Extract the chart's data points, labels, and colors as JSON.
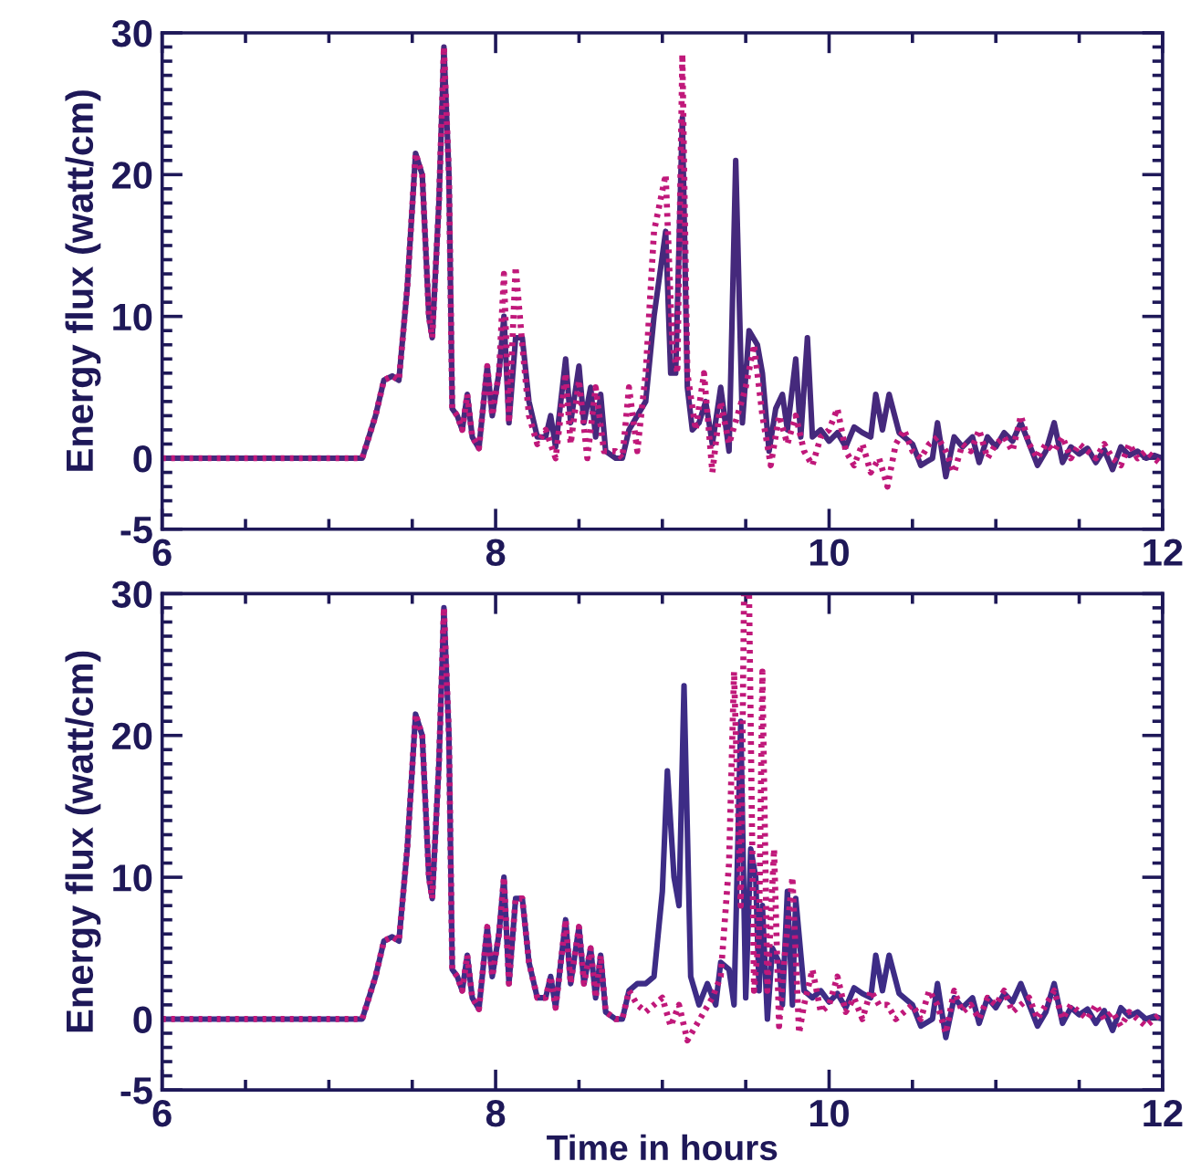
{
  "chart_data": [
    {
      "type": "line",
      "ylabel": "Energy flux (watt/cm)",
      "xlim": [
        6,
        12
      ],
      "xticks": [
        6,
        8,
        10,
        12
      ],
      "ylim": [
        -5,
        30
      ],
      "yticks": [
        -5,
        0,
        10,
        20,
        30
      ],
      "grid": false,
      "series": [
        {
          "color": "#45297c",
          "line_style": "solid",
          "x": [
            6.0,
            7.2,
            7.28,
            7.33,
            7.38,
            7.42,
            7.47,
            7.52,
            7.56,
            7.6,
            7.62,
            7.66,
            7.69,
            7.72,
            7.74,
            7.77,
            7.8,
            7.83,
            7.86,
            7.9,
            7.95,
            7.98,
            8.02,
            8.05,
            8.08,
            8.12,
            8.16,
            8.2,
            8.25,
            8.3,
            8.33,
            8.36,
            8.42,
            8.45,
            8.5,
            8.53,
            8.57,
            8.6,
            8.63,
            8.66,
            8.72,
            8.76,
            8.8,
            8.85,
            8.9,
            8.95,
            9.02,
            9.05,
            9.08,
            9.12,
            9.15,
            9.18,
            9.22,
            9.26,
            9.3,
            9.35,
            9.4,
            9.44,
            9.48,
            9.52,
            9.57,
            9.6,
            9.64,
            9.68,
            9.72,
            9.75,
            9.8,
            9.83,
            9.87,
            9.9,
            9.95,
            10.0,
            10.05,
            10.1,
            10.15,
            10.2,
            10.25,
            10.28,
            10.32,
            10.36,
            10.42,
            10.5,
            10.55,
            10.62,
            10.65,
            10.7,
            10.75,
            10.8,
            10.86,
            10.9,
            10.95,
            11.0,
            11.05,
            11.1,
            11.15,
            11.2,
            11.25,
            11.3,
            11.35,
            11.4,
            11.45,
            11.5,
            11.55,
            11.6,
            11.65,
            11.7,
            11.75,
            11.8,
            11.85,
            11.9,
            11.95,
            12.0
          ],
          "values": [
            0,
            0,
            3,
            5.5,
            5.8,
            5.5,
            12,
            21.5,
            20,
            10,
            8.5,
            18,
            29,
            20,
            3.5,
            3,
            2,
            4.5,
            1.5,
            0.7,
            6.5,
            3,
            6,
            10,
            2.5,
            8.5,
            8.5,
            4,
            1.5,
            1.5,
            3,
            0.8,
            7,
            2.5,
            6.5,
            2.5,
            5,
            1.5,
            4.5,
            0.5,
            0,
            0,
            2,
            3,
            4,
            10,
            16,
            6,
            6,
            24,
            5,
            2,
            2.5,
            4,
            1,
            5,
            0.5,
            21,
            2.5,
            9,
            8,
            6,
            0.5,
            3.5,
            4.5,
            2,
            7,
            1.5,
            8.5,
            1.5,
            2,
            1.2,
            1.8,
            0.8,
            2.2,
            1.8,
            1.5,
            4.5,
            2,
            4.5,
            1.8,
            1,
            -0.5,
            0,
            2.5,
            -1.3,
            1.5,
            0.8,
            1.5,
            -0.3,
            1.5,
            0.8,
            1.8,
            1.2,
            2.5,
            1,
            -0.5,
            0.5,
            2.5,
            -0.3,
            0.8,
            0.3,
            0.7,
            -0.3,
            0.6,
            -0.8,
            0.8,
            0.2,
            0.5,
            0,
            0.2,
            0
          ]
        },
        {
          "color": "#c0187a",
          "line_style": "dotted",
          "x": [
            6.0,
            7.2,
            7.28,
            7.33,
            7.38,
            7.42,
            7.47,
            7.52,
            7.56,
            7.6,
            7.62,
            7.66,
            7.69,
            7.72,
            7.74,
            7.77,
            7.8,
            7.83,
            7.86,
            7.9,
            7.95,
            7.98,
            8.02,
            8.05,
            8.08,
            8.12,
            8.16,
            8.2,
            8.25,
            8.3,
            8.36,
            8.42,
            8.45,
            8.5,
            8.55,
            8.6,
            8.65,
            8.72,
            8.76,
            8.8,
            8.85,
            8.9,
            8.95,
            9.02,
            9.06,
            9.09,
            9.12,
            9.15,
            9.2,
            9.25,
            9.3,
            9.35,
            9.4,
            9.45,
            9.5,
            9.55,
            9.6,
            9.65,
            9.7,
            9.75,
            9.8,
            9.85,
            9.9,
            9.95,
            10.0,
            10.05,
            10.1,
            10.15,
            10.2,
            10.25,
            10.3,
            10.35,
            10.4,
            10.45,
            10.5,
            10.55,
            10.6,
            10.65,
            10.7,
            10.75,
            10.8,
            10.85,
            10.9,
            10.95,
            11.0,
            11.05,
            11.1,
            11.15,
            11.2,
            11.25,
            11.3,
            11.35,
            11.4,
            11.45,
            11.5,
            11.55,
            11.6,
            11.65,
            11.7,
            11.75,
            11.8,
            11.85,
            11.9,
            11.95,
            12.0
          ],
          "values": [
            0,
            0,
            3,
            5.5,
            5.8,
            5.5,
            12,
            21.5,
            20,
            10,
            8.5,
            18,
            29,
            20,
            3.5,
            3,
            2,
            4.5,
            1.5,
            0.7,
            6.5,
            3,
            6,
            13,
            2.5,
            13.5,
            8,
            3,
            1,
            2,
            0,
            6,
            1,
            5.5,
            0,
            5,
            0.5,
            0.5,
            0,
            5,
            0.5,
            6,
            16,
            20,
            8,
            6,
            28.5,
            6,
            2,
            6,
            -1,
            4,
            1,
            3,
            5,
            8,
            3,
            -0.5,
            3,
            1,
            3,
            0.5,
            -0.5,
            1.5,
            2,
            3.5,
            0.5,
            -0.5,
            1,
            -1,
            0,
            -2,
            1,
            2,
            0.5,
            0,
            1,
            1.5,
            0.5,
            -1,
            1,
            0.5,
            2,
            0,
            1,
            1.5,
            0.5,
            3,
            1,
            0,
            1,
            0.5,
            1.5,
            0,
            1,
            0.5,
            0,
            1,
            0,
            -0.5,
            1,
            0,
            0.5,
            0,
            -0.5
          ]
        }
      ]
    },
    {
      "type": "line",
      "xlabel": "Time in hours",
      "ylabel": "Energy flux (watt/cm)",
      "xlim": [
        6,
        12
      ],
      "xticks": [
        6,
        8,
        10,
        12
      ],
      "ylim": [
        -5,
        30
      ],
      "yticks": [
        -5,
        0,
        10,
        20,
        30
      ],
      "grid": false,
      "series": [
        {
          "color": "#3d2c86",
          "line_style": "solid",
          "x": [
            6.0,
            7.2,
            7.28,
            7.33,
            7.38,
            7.42,
            7.47,
            7.52,
            7.56,
            7.6,
            7.62,
            7.66,
            7.69,
            7.72,
            7.74,
            7.77,
            7.8,
            7.83,
            7.86,
            7.9,
            7.95,
            7.98,
            8.02,
            8.05,
            8.08,
            8.12,
            8.16,
            8.2,
            8.25,
            8.3,
            8.33,
            8.36,
            8.42,
            8.45,
            8.5,
            8.53,
            8.57,
            8.6,
            8.63,
            8.66,
            8.72,
            8.76,
            8.8,
            8.85,
            8.9,
            8.95,
            9.0,
            9.03,
            9.07,
            9.1,
            9.13,
            9.17,
            9.22,
            9.27,
            9.32,
            9.35,
            9.4,
            9.43,
            9.47,
            9.5,
            9.53,
            9.56,
            9.58,
            9.6,
            9.63,
            9.66,
            9.7,
            9.72,
            9.75,
            9.78,
            9.8,
            9.85,
            9.9,
            9.95,
            10.0,
            10.05,
            10.1,
            10.15,
            10.2,
            10.25,
            10.28,
            10.32,
            10.36,
            10.42,
            10.5,
            10.55,
            10.62,
            10.65,
            10.7,
            10.75,
            10.8,
            10.86,
            10.9,
            10.95,
            11.0,
            11.05,
            11.1,
            11.15,
            11.2,
            11.25,
            11.3,
            11.35,
            11.4,
            11.45,
            11.5,
            11.55,
            11.6,
            11.65,
            11.7,
            11.75,
            11.8,
            11.85,
            11.9,
            11.95,
            12.0
          ],
          "values": [
            0,
            0,
            3,
            5.5,
            5.8,
            5.5,
            12,
            21.5,
            20,
            10,
            8.5,
            18,
            29,
            20,
            3.5,
            3,
            2,
            4.5,
            1.5,
            0.7,
            6.5,
            3,
            6,
            10,
            2.5,
            8.5,
            8.5,
            4,
            1.5,
            1.5,
            3,
            0.8,
            7,
            2.5,
            6.5,
            2.5,
            5,
            1.5,
            4.5,
            0.5,
            0,
            0,
            2,
            2.5,
            2.5,
            3,
            9,
            17.5,
            10,
            8,
            23.5,
            3,
            1,
            2.5,
            1,
            4,
            3.5,
            1,
            21,
            1.5,
            12,
            10,
            2,
            8,
            0,
            5,
            4,
            1,
            9,
            1,
            8.5,
            2,
            1.5,
            2,
            1.2,
            1.8,
            0.8,
            2.2,
            1.8,
            1.5,
            4.5,
            2,
            4.5,
            1.8,
            1,
            -0.5,
            0,
            2.5,
            -1.3,
            1.5,
            0.8,
            1.5,
            -0.3,
            1.5,
            0.8,
            1.8,
            1.2,
            2.5,
            1,
            -0.5,
            0.5,
            2.5,
            -0.3,
            0.8,
            0.3,
            0.7,
            -0.3,
            0.6,
            -0.8,
            0.8,
            0.2,
            0.5,
            0,
            0.2,
            0
          ]
        },
        {
          "color": "#c0187a",
          "line_style": "dotted",
          "x": [
            6.0,
            7.2,
            7.28,
            7.33,
            7.38,
            7.42,
            7.47,
            7.52,
            7.56,
            7.6,
            7.62,
            7.66,
            7.69,
            7.72,
            7.74,
            7.77,
            7.8,
            7.83,
            7.86,
            7.9,
            7.95,
            7.98,
            8.02,
            8.05,
            8.08,
            8.12,
            8.16,
            8.2,
            8.25,
            8.3,
            8.33,
            8.36,
            8.42,
            8.45,
            8.5,
            8.53,
            8.57,
            8.6,
            8.63,
            8.66,
            8.72,
            8.76,
            8.8,
            8.85,
            8.9,
            9.0,
            9.05,
            9.1,
            9.15,
            9.2,
            9.25,
            9.3,
            9.35,
            9.4,
            9.43,
            9.47,
            9.49,
            9.52,
            9.55,
            9.58,
            9.6,
            9.63,
            9.67,
            9.7,
            9.73,
            9.78,
            9.82,
            9.85,
            9.9,
            9.95,
            10.0,
            10.05,
            10.1,
            10.15,
            10.2,
            10.25,
            10.3,
            10.35,
            10.4,
            10.45,
            10.5,
            10.55,
            10.6,
            10.65,
            10.7,
            10.75,
            10.8,
            10.85,
            10.9,
            10.95,
            11.0,
            11.05,
            11.1,
            11.15,
            11.2,
            11.25,
            11.3,
            11.35,
            11.4,
            11.45,
            11.5,
            11.55,
            11.6,
            11.65,
            11.7,
            11.75,
            11.8,
            11.85,
            11.9,
            11.95,
            12.0
          ],
          "values": [
            0,
            0,
            3,
            5.5,
            5.8,
            5.5,
            12,
            21.5,
            20,
            10,
            8.5,
            18,
            29,
            20,
            3.5,
            3,
            2,
            4.5,
            1.5,
            0.7,
            6.5,
            3,
            6,
            10,
            2.5,
            8.5,
            8.5,
            4,
            1.5,
            1.5,
            3,
            0.8,
            7,
            2.5,
            6.5,
            2.5,
            5,
            1.5,
            4.5,
            0.5,
            0,
            0,
            2,
            1,
            0.5,
            1.5,
            -0.5,
            1,
            -1.5,
            -0.5,
            0.5,
            1.5,
            3,
            11,
            24.5,
            8,
            30,
            30,
            2,
            6,
            24.5,
            2,
            12,
            -0.5,
            4,
            10,
            -1,
            1,
            3.5,
            0.5,
            1,
            3,
            0.5,
            1.5,
            0,
            2,
            1,
            1,
            0,
            0.5,
            1,
            0,
            2,
            1,
            -1,
            2,
            0.5,
            1,
            0,
            1.5,
            1,
            2,
            0.5,
            1,
            1.5,
            0,
            1,
            2,
            0,
            1,
            0.5,
            0,
            1,
            0,
            0.5,
            -0.5,
            0.5,
            0,
            -0.5,
            0,
            0.5
          ]
        }
      ]
    }
  ]
}
